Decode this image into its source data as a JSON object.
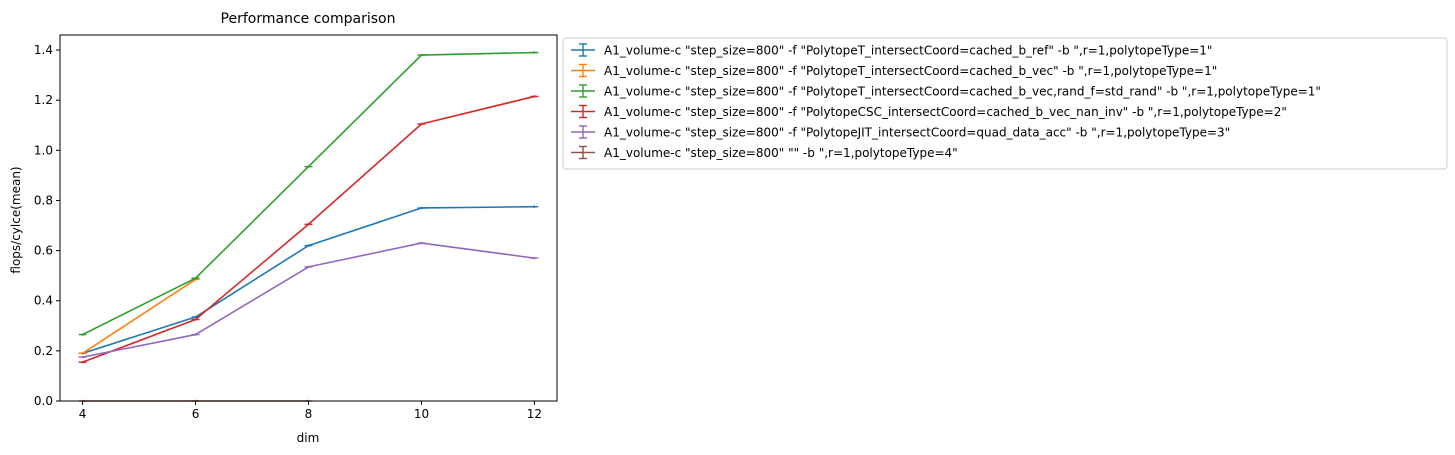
{
  "chart_data": {
    "type": "line",
    "title": "Performance comparison",
    "xlabel": "dim",
    "ylabel": "flops/cylce(mean)",
    "xlim": [
      3.6,
      12.4
    ],
    "ylim": [
      0.0,
      1.46
    ],
    "xticks": [
      4,
      6,
      8,
      10,
      12
    ],
    "yticks": [
      0.0,
      0.2,
      0.4,
      0.6,
      0.8,
      1.0,
      1.2,
      1.4
    ],
    "grid": false,
    "legend_position": "outside-upper-right",
    "series": [
      {
        "name": "A1_volume-c \"step_size=800\" -f \"PolytopeT_intersectCoord=cached_b_ref\" -b \",r=1,polytopeType=1\"",
        "color": "#1f77b4",
        "x": [
          4,
          6,
          8,
          10,
          12
        ],
        "y": [
          0.19,
          0.335,
          0.62,
          0.77,
          0.775
        ]
      },
      {
        "name": "A1_volume-c \"step_size=800\" -f \"PolytopeT_intersectCoord=cached_b_vec\" -b \",r=1,polytopeType=1\"",
        "color": "#ff7f0e",
        "x": [
          4,
          6
        ],
        "y": [
          0.19,
          0.485
        ]
      },
      {
        "name": "A1_volume-c \"step_size=800\" -f \"PolytopeT_intersectCoord=cached_b_vec,rand_f=std_rand\" -b \",r=1,polytopeType=1\"",
        "color": "#2ca02c",
        "x": [
          4,
          6,
          8,
          10,
          12
        ],
        "y": [
          0.265,
          0.49,
          0.935,
          1.38,
          1.39
        ]
      },
      {
        "name": "A1_volume-c \"step_size=800\" -f \"PolytopeCSC_intersectCoord=cached_b_vec_nan_inv\" -b \",r=1,polytopeType=2\"",
        "color": "#d62728",
        "x": [
          4,
          6,
          8,
          10,
          12
        ],
        "y": [
          0.155,
          0.325,
          0.705,
          1.105,
          1.215
        ]
      },
      {
        "name": "A1_volume-c \"step_size=800\" -f \"PolytopeJIT_intersectCoord=quad_data_acc\" -b \",r=1,polytopeType=3\"",
        "color": "#9467bd",
        "x": [
          4,
          6,
          8,
          10,
          12
        ],
        "y": [
          0.175,
          0.265,
          0.535,
          0.63,
          0.57
        ]
      },
      {
        "name": "A1_volume-c \"step_size=800\"  \"\" -b \",r=1,polytopeType=4\"",
        "color": "#8c564b",
        "x": [
          4,
          6,
          8
        ],
        "y": [
          0.0,
          0.0,
          0.0
        ]
      }
    ]
  }
}
